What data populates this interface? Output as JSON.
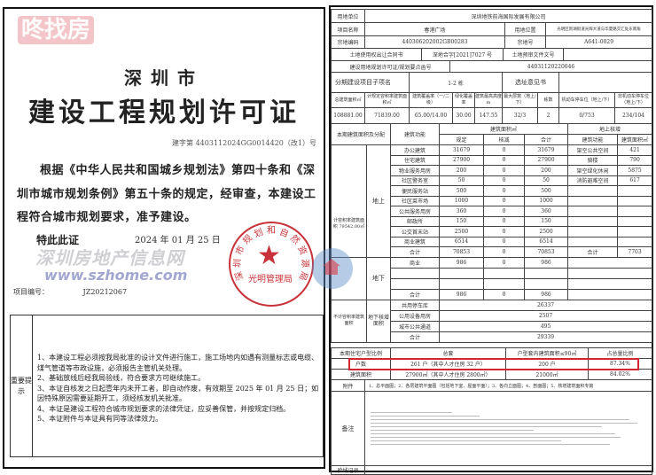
{
  "left": {
    "city": "深圳市",
    "title": "建设工程规划许可证",
    "permit_no": "建字第 4403112024GG0014420（改1）号",
    "body": "根据《中华人民共和国城乡规划法》第四十条和《深圳市城市规划条例》第五十条的规定，经审查，本建设工程符合城市规划要求，准予建设。",
    "special": "特此此证",
    "stamp_org": "深圳市规划和自然资源局",
    "stamp_unit": "光明管理局",
    "issue_date": "2024 年 01 月 25 日",
    "project_no_label": "项目编号：",
    "project_no": "JZ20212067",
    "notes_label": "重要提示",
    "notes": [
      "1、本建设工程必须按我局批准的设计文件进行施工，施工场地内如遇有测量标志或电缆、煤气管道等市政设施，必须报告主管机关处理。",
      "2、基础放线后经我局验线，符合要求方可继续施工。",
      "3、本证自核发之日起壹年内未开工者，即自动作废，有效期至 2025 年 01 月 25 日；如因特殊原因需要延期开工，须经核发机关批准。",
      "4、本证是建设工程符合城市规划要求的法律凭证，应妥善保管，并按规定归档。",
      "5、本证附件与本证具有同等法律效力。"
    ]
  },
  "right": {
    "land_user_label": "用地单位",
    "land_user": "深圳地铁前海国际发展有限公司",
    "project_name_label": "项目名称",
    "project_name": "春港广场",
    "location_label": "用地位置",
    "location": "光明区新湖街道光辉大道与华夏路交汇处东南角",
    "parcel_code_label": "宗地编码",
    "parcel_code": "440306202002GB00283",
    "parcel_no_label": "宗地号",
    "parcel_no": "A641-0029",
    "contract_label": "土地使用权出让合同书",
    "contract": "深地合字[2021]7027 号",
    "pre_review_label": "土地预审文件文号",
    "pre_review": "",
    "land_permit_label": "建设用地规划许可证/规划要点函号",
    "land_permit": "44031120220046",
    "phase_label": "分期建设项目子项名",
    "phase": "1-2 栋",
    "site_opinion_label": "选址意见书",
    "site_opinion": "",
    "metrics_headers": [
      "总建筑面积㎡",
      "计规定容积率建筑面积㎡",
      "建筑覆盖率（一/二级）",
      "绿化覆盖率",
      "建筑最高高度 m",
      "最大层数（地上/下）",
      "栋数",
      "机动车停车位（地上/下）",
      "非机动车停车位（地上/下）"
    ],
    "metrics_values": [
      "108881.00",
      "71839.00",
      "65.00/14.00",
      "30.00",
      "147.55",
      "32/3",
      "2",
      "0/753",
      "234/104"
    ],
    "area_section_label": "本期建筑面积及分配",
    "function_label": "建筑功能",
    "area_label": "建筑面积㎡",
    "area_cols": [
      "规定",
      "核减",
      "合计"
    ],
    "bonus_label": "地上核增",
    "bonus_cols": [
      "建筑功能",
      "建筑面积㎡"
    ],
    "above_label": "地上",
    "calc_note": "计容积率建筑面积 79542.00㎡",
    "above_rows": [
      [
        "办公建筑",
        "31679",
        "0",
        "31679",
        "架空公共空间",
        "421"
      ],
      [
        "住宅建筑",
        "27900",
        "0",
        "27900",
        "骑楼",
        "790"
      ],
      [
        "物业服务用房",
        "200",
        "0",
        "200",
        "架空绿化休闲",
        "5875"
      ],
      [
        "社区警务室",
        "50",
        "0",
        "50",
        "消防避难空间",
        "617"
      ],
      [
        "便民服务站",
        "500",
        "0",
        "500",
        "",
        ""
      ],
      [
        "社区菜市场",
        "1000",
        "0",
        "1000",
        "",
        ""
      ],
      [
        "公共服务用房",
        "360",
        "0",
        "360",
        "",
        ""
      ],
      [
        "邮政所",
        "150",
        "0",
        "150",
        "",
        ""
      ],
      [
        "公交首末站",
        "2500",
        "0",
        "2500",
        "",
        ""
      ],
      [
        "商业建筑",
        "6514",
        "0",
        "6514",
        "",
        ""
      ],
      [
        "合计",
        "70853",
        "0",
        "70853",
        "合计",
        "7703"
      ]
    ],
    "below_label": "地下",
    "below_rows": [
      [
        "商业",
        "986",
        "0",
        "986"
      ],
      [
        "",
        "",
        "",
        ""
      ],
      [
        "",
        "",
        "",
        ""
      ],
      [
        "合计",
        "986",
        "0",
        "986"
      ]
    ],
    "noncalc_note": "不计容积率建筑面积",
    "below_bonus_label": "地下核增面积",
    "below_bonus_rows": [
      [
        "共用停车库",
        "26337"
      ],
      [
        "公用设备用房",
        "2507"
      ],
      [
        "城市公共通道",
        "495"
      ],
      [
        "合计",
        "29339"
      ]
    ],
    "unit_header": [
      "本期住宅户型比例",
      "总套",
      "户型套内建筑面积≤90㎡",
      "占总量比例"
    ],
    "unit_rows": [
      [
        "户数",
        "261 户（其中人才住房 32 户）",
        "200 户",
        "87.34%"
      ],
      [
        "建筑面积",
        "27900㎡（其中人才住房 2800㎡）",
        "21000㎡",
        "84.02%"
      ]
    ],
    "attachment_label": "附件",
    "attachment": "1、总平面图；2、各层建筑平面图（包括地下室、屋面平面）；3、各向立面图；4、剖面图；5、核增建筑面积专篇",
    "remarks_label": "备注",
    "inspection_label": "验线记录"
  },
  "watermark": {
    "brand": "咚找房",
    "site": "深圳房地产信息网",
    "url": "www.szhome.com"
  },
  "colors": {
    "stamp": "#c8323a",
    "highlight": "#d0282e"
  }
}
